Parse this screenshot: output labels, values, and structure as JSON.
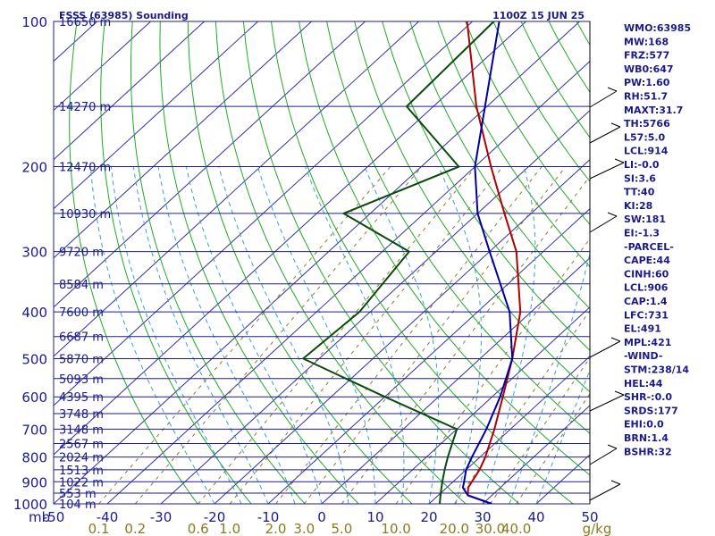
{
  "header": {
    "title": "FSSS (63985) Sounding",
    "time": "1100Z 15 JUN 25"
  },
  "indices": [
    "WMO:63985",
    "MW:168",
    "FRZ:577",
    "WB0:647",
    "PW:1.60",
    "RH:51.7",
    "MAXT:31.7",
    "TH:5766",
    "L57:5.0",
    "LCL:914",
    "LI:-0.0",
    "SI:3.6",
    "TT:40",
    "KI:28",
    "SW:181",
    "EI:-1.3",
    "-PARCEL-",
    "CAPE:44",
    "CINH:60",
    "LCL:906",
    "CAP:1.4",
    "LFC:731",
    "EL:491",
    "MPL:421",
    "-WIND-",
    "STM:238/14",
    "HEL:44",
    "SHR-:0.0",
    "SRDS:177",
    "EHI:0.0",
    "BRN:1.4",
    "BSHR:32"
  ],
  "chart_data": {
    "type": "line",
    "title": "FSSS (63985) Sounding",
    "xlabel": "",
    "ylabel": "mb",
    "pressure_unit_label": "mb",
    "mixing_ratio_unit_label": "g/kg",
    "xlim": [
      -50,
      50
    ],
    "ylim": [
      1000,
      100
    ],
    "y_scale": "log",
    "temperature_ticks": [
      "-50",
      "-40",
      "-30",
      "-20",
      "-10",
      "0",
      "10",
      "20",
      "30",
      "40",
      "50"
    ],
    "pressure_ticks": [
      "100",
      "200",
      "300",
      "400",
      "500",
      "600",
      "700",
      "800",
      "900",
      "1000"
    ],
    "mixing_ratio_ticks": [
      "0.1",
      "0.2",
      "0.6",
      "1.0",
      "2.0",
      "3.0",
      "5.0",
      "10.0",
      "20.0",
      "30.0",
      "40.0"
    ],
    "height_levels": [
      {
        "p": 100,
        "label": "16650 m"
      },
      {
        "p": 150,
        "label": "14270 m"
      },
      {
        "p": 200,
        "label": "12470 m"
      },
      {
        "p": 250,
        "label": "10930 m"
      },
      {
        "p": 300,
        "label": "9720 m"
      },
      {
        "p": 350,
        "label": "8584 m"
      },
      {
        "p": 400,
        "label": "7600 m"
      },
      {
        "p": 450,
        "label": "6687 m"
      },
      {
        "p": 500,
        "label": "5870 m"
      },
      {
        "p": 550,
        "label": "5093 m"
      },
      {
        "p": 600,
        "label": "4395 m"
      },
      {
        "p": 650,
        "label": "3748 m"
      },
      {
        "p": 700,
        "label": "3148 m"
      },
      {
        "p": 750,
        "label": "2567 m"
      },
      {
        "p": 800,
        "label": "2024 m"
      },
      {
        "p": 850,
        "label": "1513 m"
      },
      {
        "p": 900,
        "label": "1022 m"
      },
      {
        "p": 950,
        "label": "553 m"
      },
      {
        "p": 1000,
        "label": "104 m"
      }
    ],
    "series": [
      {
        "key": "temperature",
        "color": "#b00000",
        "points": [
          [
            1000,
            31.7
          ],
          [
            960,
            25.5
          ],
          [
            925,
            24.0
          ],
          [
            900,
            23.5
          ],
          [
            850,
            22.5
          ],
          [
            800,
            21.0
          ],
          [
            700,
            17.0
          ],
          [
            600,
            12.0
          ],
          [
            500,
            6.0
          ],
          [
            400,
            -2.0
          ],
          [
            300,
            -15.0
          ],
          [
            250,
            -25.0
          ],
          [
            200,
            -37.0
          ],
          [
            150,
            -52.0
          ],
          [
            100,
            -71.0
          ]
        ]
      },
      {
        "key": "dewpoint",
        "color": "#0a4a0a",
        "points": [
          [
            1000,
            22.0
          ],
          [
            950,
            20.0
          ],
          [
            900,
            18.0
          ],
          [
            850,
            16.0
          ],
          [
            800,
            14.0
          ],
          [
            700,
            10.0
          ],
          [
            600,
            -10.0
          ],
          [
            500,
            -33.0
          ],
          [
            400,
            -32.0
          ],
          [
            300,
            -35.0
          ],
          [
            250,
            -55.0
          ],
          [
            200,
            -43.0
          ],
          [
            150,
            -65.0
          ],
          [
            100,
            -66.0
          ]
        ]
      },
      {
        "key": "parcel",
        "color": "#0000a0",
        "points": [
          [
            1000,
            31.7
          ],
          [
            960,
            25.5
          ],
          [
            925,
            23.0
          ],
          [
            906,
            22.3
          ],
          [
            850,
            20.0
          ],
          [
            800,
            18.5
          ],
          [
            700,
            15.5
          ],
          [
            600,
            11.5
          ],
          [
            500,
            6.0
          ],
          [
            400,
            -4.0
          ],
          [
            300,
            -20.0
          ],
          [
            250,
            -30.0
          ],
          [
            200,
            -40.0
          ],
          [
            100,
            -65.0
          ]
        ]
      }
    ],
    "colors": {
      "isobar": "#1e1e8a",
      "isotherm": "#3030a8",
      "dry_adiabat": "#22aa22",
      "moist_adiabat": "#3aa0d0",
      "mixing_ratio": "#8c7a30",
      "temperature": "#b00000",
      "dewpoint": "#0a4a0a",
      "parcel": "#0000a0"
    }
  }
}
